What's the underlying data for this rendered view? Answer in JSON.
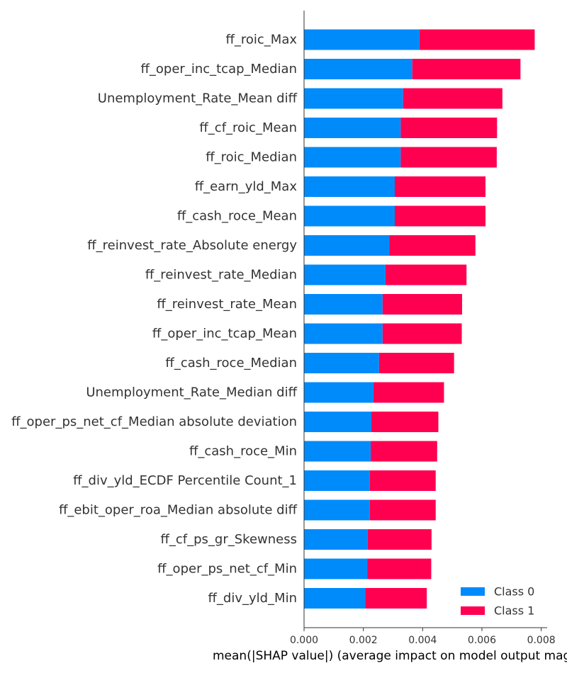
{
  "chart_data": {
    "type": "bar",
    "stacked": true,
    "orientation": "horizontal",
    "categories": [
      "ff_roic_Max",
      "ff_oper_inc_tcap_Median",
      "Unemployment_Rate_Mean diff",
      "ff_cf_roic_Mean",
      "ff_roic_Median",
      "ff_earn_yld_Max",
      "ff_cash_roce_Mean",
      "ff_reinvest_rate_Absolute energy",
      "ff_reinvest_rate_Median",
      "ff_reinvest_rate_Mean",
      "ff_oper_inc_tcap_Mean",
      "ff_cash_roce_Median",
      "Unemployment_Rate_Median diff",
      "ff_oper_ps_net_cf_Median absolute deviation",
      "ff_cash_roce_Min",
      "ff_div_yld_ECDF Percentile Count_1",
      "ff_ebit_oper_roa_Median absolute diff",
      "ff_cf_ps_gr_Skewness",
      "ff_oper_ps_net_cf_Min",
      "ff_div_yld_Min"
    ],
    "series": [
      {
        "name": "Class 0",
        "color": "#008bfb",
        "values": [
          0.00389,
          0.00365,
          0.00334,
          0.00326,
          0.00326,
          0.00306,
          0.00306,
          0.00288,
          0.00275,
          0.00265,
          0.00265,
          0.00253,
          0.00234,
          0.00227,
          0.00225,
          0.00222,
          0.00222,
          0.00215,
          0.00213,
          0.00206
        ]
      },
      {
        "name": "Class 1",
        "color": "#ff0051",
        "values": [
          0.00389,
          0.00365,
          0.00335,
          0.00325,
          0.00324,
          0.00306,
          0.00306,
          0.0029,
          0.00273,
          0.00268,
          0.00267,
          0.00253,
          0.00238,
          0.00226,
          0.00224,
          0.00222,
          0.00222,
          0.00215,
          0.00216,
          0.00208
        ]
      }
    ],
    "xlabel": "mean(|SHAP value|) (average impact on model output magnitude)",
    "xlim": [
      0.0,
      0.0082
    ],
    "xticks": [
      0.0,
      0.002,
      0.004,
      0.006,
      0.008
    ],
    "xtick_labels": [
      "0.000",
      "0.002",
      "0.004",
      "0.006",
      "0.008"
    ],
    "grid": false,
    "legend": {
      "position": "bottom-right",
      "entries": [
        "Class 0",
        "Class 1"
      ]
    }
  }
}
